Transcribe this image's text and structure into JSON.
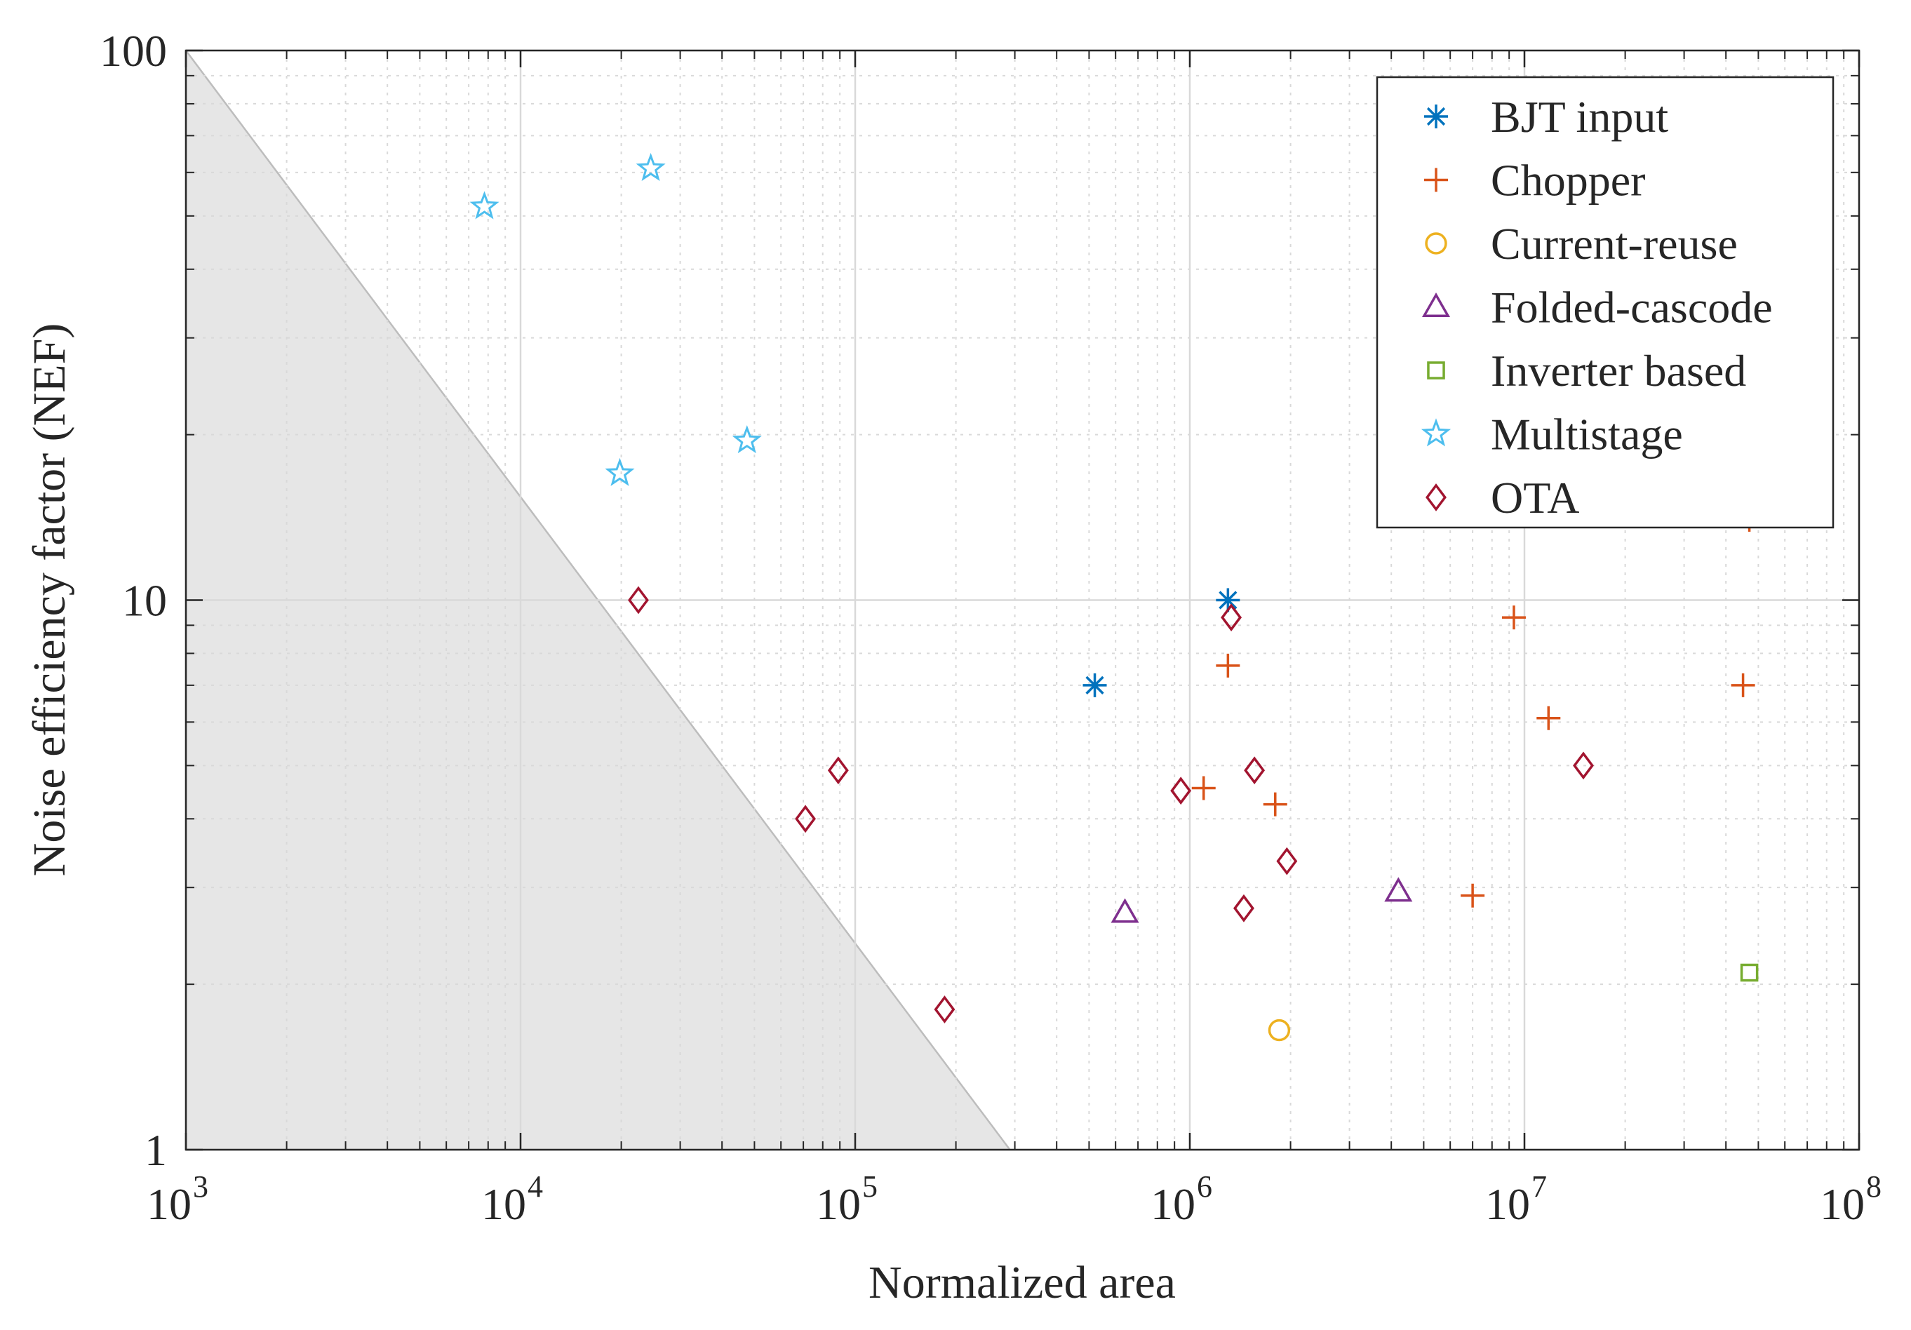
{
  "chart_data": {
    "type": "scatter",
    "title": "",
    "xlabel": "Normalized area",
    "ylabel": "Noise efficiency factor (NEF)",
    "xscale": "log",
    "yscale": "log",
    "xlim": [
      1000,
      100000000
    ],
    "ylim": [
      1,
      100
    ],
    "grid": true,
    "legend_position": "top-right",
    "x_ticks": [
      {
        "value": 1000,
        "base": "10",
        "exp": "3"
      },
      {
        "value": 10000,
        "base": "10",
        "exp": "4"
      },
      {
        "value": 100000,
        "base": "10",
        "exp": "5"
      },
      {
        "value": 1000000,
        "base": "10",
        "exp": "6"
      },
      {
        "value": 10000000,
        "base": "10",
        "exp": "7"
      },
      {
        "value": 100000000,
        "base": "10",
        "exp": "8"
      }
    ],
    "y_ticks": [
      {
        "value": 1,
        "label": "1"
      },
      {
        "value": 10,
        "label": "10"
      },
      {
        "value": 100,
        "label": "100"
      }
    ],
    "shaded_region": {
      "description": "infeasible region below diagonal",
      "color": "#e6e6e6",
      "edge_color": "#bdbdbd",
      "line": [
        {
          "x": 1000,
          "y": 100
        },
        {
          "x": 290000,
          "y": 1
        }
      ]
    },
    "series": [
      {
        "name": "BJT input",
        "marker": "asterisk",
        "color": "#0072BD",
        "points": [
          {
            "x": 520000,
            "y": 7.0
          },
          {
            "x": 1300000,
            "y": 10.0
          }
        ]
      },
      {
        "name": "Chopper",
        "marker": "plus",
        "color": "#D95319",
        "points": [
          {
            "x": 1100000,
            "y": 4.55
          },
          {
            "x": 1300000,
            "y": 7.6
          },
          {
            "x": 1800000,
            "y": 4.25
          },
          {
            "x": 7000000,
            "y": 2.9
          },
          {
            "x": 9300000,
            "y": 9.3
          },
          {
            "x": 11800000,
            "y": 6.1
          },
          {
            "x": 45000000,
            "y": 7.0
          },
          {
            "x": 47000000,
            "y": 14.0
          }
        ]
      },
      {
        "name": "Current-reuse",
        "marker": "circle",
        "color": "#EDB120",
        "points": [
          {
            "x": 1850000,
            "y": 1.65
          }
        ]
      },
      {
        "name": "Folded-cascode",
        "marker": "triangle",
        "color": "#7E2F8E",
        "points": [
          {
            "x": 640000,
            "y": 2.7
          },
          {
            "x": 4200000,
            "y": 2.95
          }
        ]
      },
      {
        "name": "Inverter based",
        "marker": "square",
        "color": "#77AC30",
        "points": [
          {
            "x": 47000000,
            "y": 2.1
          }
        ]
      },
      {
        "name": "Multistage",
        "marker": "pentagram",
        "color": "#4DBEEE",
        "points": [
          {
            "x": 7800,
            "y": 52
          },
          {
            "x": 19800,
            "y": 17
          },
          {
            "x": 24500,
            "y": 61
          },
          {
            "x": 47500,
            "y": 19.5
          }
        ]
      },
      {
        "name": "OTA",
        "marker": "diamond",
        "color": "#A2142F",
        "points": [
          {
            "x": 22500,
            "y": 10.0
          },
          {
            "x": 71000,
            "y": 4.0
          },
          {
            "x": 89000,
            "y": 4.9
          },
          {
            "x": 185000,
            "y": 1.8
          },
          {
            "x": 940000,
            "y": 4.5
          },
          {
            "x": 1330000,
            "y": 9.3
          },
          {
            "x": 1450000,
            "y": 2.75
          },
          {
            "x": 1560000,
            "y": 4.9
          },
          {
            "x": 1950000,
            "y": 3.35
          },
          {
            "x": 15000000,
            "y": 5.0
          }
        ]
      }
    ]
  }
}
